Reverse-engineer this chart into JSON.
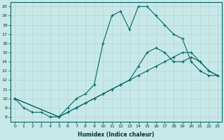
{
  "xlabel": "Humidex (Indice chaleur)",
  "bg_color": "#c8e8e8",
  "grid_color": "#b0d4d4",
  "line_color": "#006666",
  "xlim": [
    -0.5,
    23.5
  ],
  "ylim": [
    7.5,
    20.5
  ],
  "xticks": [
    0,
    1,
    2,
    3,
    4,
    5,
    6,
    7,
    8,
    9,
    10,
    11,
    12,
    13,
    14,
    15,
    16,
    17,
    18,
    19,
    20,
    21,
    22,
    23
  ],
  "yticks": [
    8,
    9,
    10,
    11,
    12,
    13,
    14,
    15,
    16,
    17,
    18,
    19,
    20
  ],
  "line_main_x": [
    0,
    1,
    2,
    3,
    4,
    5,
    6,
    7,
    8,
    9,
    10,
    11,
    12,
    13,
    14,
    15,
    16,
    17,
    18,
    19,
    20,
    21,
    22,
    23
  ],
  "line_main_y": [
    10,
    9,
    8.5,
    8.5,
    8,
    8,
    9,
    10,
    10.5,
    11.5,
    16,
    19,
    19.5,
    17.5,
    20,
    20,
    19,
    18,
    17,
    16.5,
    14,
    13,
    12.5,
    12.5
  ],
  "line_diag1_x": [
    0,
    5,
    6,
    7,
    8,
    9,
    10,
    11,
    12,
    13,
    14,
    15,
    16,
    17,
    18,
    19,
    20,
    21,
    22,
    23
  ],
  "line_diag1_y": [
    10,
    8,
    8.5,
    9,
    9.5,
    10,
    10.5,
    11,
    11.5,
    12,
    12.5,
    13,
    13.5,
    14,
    14.5,
    15,
    15,
    14,
    13,
    12.5
  ],
  "line_diag2_x": [
    0,
    5,
    6,
    7,
    8,
    9,
    10,
    11,
    12,
    13,
    14,
    15,
    16,
    17,
    18,
    19,
    20,
    21,
    22,
    23
  ],
  "line_diag2_y": [
    10,
    8,
    8.5,
    9,
    9.5,
    10,
    10.5,
    11,
    11.5,
    12,
    13.5,
    15,
    15.5,
    15,
    14,
    14,
    14.5,
    14,
    13,
    12.5
  ]
}
